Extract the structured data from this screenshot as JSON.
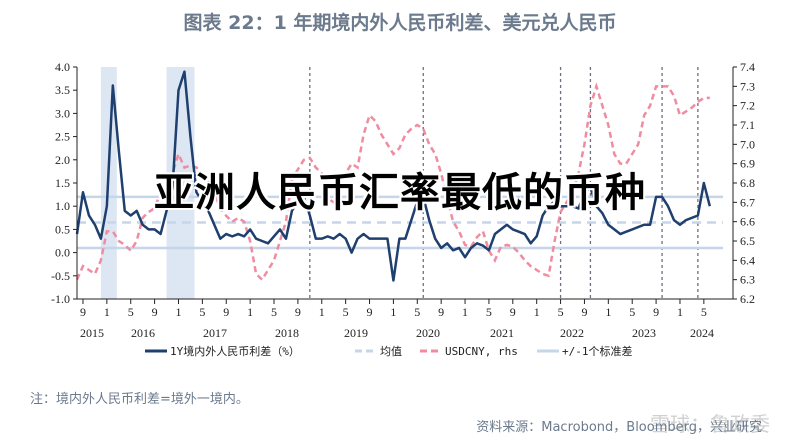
{
  "title": "图表 22：1 年期境内外人民币利差、美元兑人民币",
  "overlay_text": "亚洲人民币汇率最低的币种",
  "note": "注：境内外人民币利差=境外一境内。",
  "source": "资料来源：Macrobond，Bloomberg，兴业研究",
  "watermark": "雪球：鲁政委",
  "colors": {
    "spread": "#1f3f6e",
    "usdcny": "#f08ca0",
    "mean": "#c5d5ea",
    "std": "#c5d5ea",
    "shade": "#dde7f3",
    "vline": "#6b6f80"
  },
  "chart_data": {
    "type": "line",
    "title": "",
    "left_axis": {
      "range": [
        -1.0,
        4.0
      ],
      "ticks": [
        "-1.0",
        "-0.5",
        "0.0",
        "0.5",
        "1.0",
        "1.5",
        "2.0",
        "2.5",
        "3.0",
        "3.5",
        "4.0"
      ]
    },
    "right_axis": {
      "range": [
        6.2,
        7.4
      ],
      "ticks": [
        "6.2",
        "6.3",
        "6.4",
        "6.5",
        "6.6",
        "6.7",
        "6.8",
        "6.9",
        "7.0",
        "7.1",
        "7.2",
        "7.3",
        "7.4"
      ]
    },
    "x_month_ticks": [
      "9",
      "1",
      "5",
      "9",
      "1",
      "5",
      "9",
      "1",
      "5",
      "9",
      "1",
      "5",
      "9",
      "1",
      "5",
      "9",
      "1",
      "5",
      "9",
      "1",
      "5",
      "9",
      "1",
      "5",
      "9",
      "1",
      "5"
    ],
    "x_year_labels": [
      "2015",
      "2016",
      "2017",
      "2018",
      "2019",
      "2020",
      "2021",
      "2022",
      "2023",
      "2024"
    ],
    "x": [
      "2015-08",
      "2015-09",
      "2015-10",
      "2015-11",
      "2015-12",
      "2016-01",
      "2016-02",
      "2016-03",
      "2016-04",
      "2016-05",
      "2016-06",
      "2016-07",
      "2016-08",
      "2016-09",
      "2016-10",
      "2016-11",
      "2016-12",
      "2017-01",
      "2017-02",
      "2017-03",
      "2017-04",
      "2017-05",
      "2017-06",
      "2017-07",
      "2017-08",
      "2017-09",
      "2017-10",
      "2017-11",
      "2017-12",
      "2018-01",
      "2018-02",
      "2018-03",
      "2018-04",
      "2018-05",
      "2018-06",
      "2018-07",
      "2018-08",
      "2018-09",
      "2018-10",
      "2018-11",
      "2018-12",
      "2019-01",
      "2019-02",
      "2019-03",
      "2019-04",
      "2019-05",
      "2019-06",
      "2019-07",
      "2019-08",
      "2019-09",
      "2019-10",
      "2019-11",
      "2019-12",
      "2020-01",
      "2020-02",
      "2020-03",
      "2020-04",
      "2020-05",
      "2020-06",
      "2020-07",
      "2020-08",
      "2020-09",
      "2020-10",
      "2020-11",
      "2020-12",
      "2021-01",
      "2021-02",
      "2021-03",
      "2021-04",
      "2021-05",
      "2021-06",
      "2021-07",
      "2021-08",
      "2021-09",
      "2021-10",
      "2021-11",
      "2021-12",
      "2022-01",
      "2022-02",
      "2022-03",
      "2022-04",
      "2022-05",
      "2022-06",
      "2022-07",
      "2022-08",
      "2022-09",
      "2022-10",
      "2022-11",
      "2022-12",
      "2023-01",
      "2023-02",
      "2023-03",
      "2023-04",
      "2023-05",
      "2023-06",
      "2023-07",
      "2023-08",
      "2023-09",
      "2023-10",
      "2023-11",
      "2023-12",
      "2024-01",
      "2024-02",
      "2024-03",
      "2024-04",
      "2024-05",
      "2024-06"
    ],
    "series": [
      {
        "name": "1Y境内外人民币利差（%）",
        "axis": "left",
        "style": "solid",
        "values": [
          0.4,
          1.3,
          0.8,
          0.6,
          0.3,
          1.0,
          3.6,
          2.2,
          0.9,
          0.8,
          0.9,
          0.6,
          0.5,
          0.5,
          0.4,
          0.9,
          1.4,
          3.5,
          3.9,
          2.5,
          1.3,
          1.1,
          0.9,
          0.6,
          0.3,
          0.4,
          0.35,
          0.4,
          0.35,
          0.5,
          0.3,
          0.25,
          0.2,
          0.35,
          0.5,
          0.3,
          0.9,
          1.1,
          1.2,
          0.8,
          0.3,
          0.3,
          0.35,
          0.3,
          0.4,
          0.3,
          0.0,
          0.3,
          0.4,
          0.3,
          0.3,
          0.3,
          0.3,
          -0.6,
          0.3,
          0.3,
          0.7,
          1.1,
          1.2,
          0.7,
          0.3,
          0.1,
          0.2,
          0.05,
          0.1,
          -0.1,
          0.1,
          0.2,
          0.15,
          0.05,
          0.4,
          0.5,
          0.6,
          0.5,
          0.45,
          0.4,
          0.2,
          0.35,
          0.8,
          1.0,
          1.1,
          1.0,
          1.0,
          1.0,
          0.95,
          1.3,
          1.4,
          1.0,
          0.85,
          0.6,
          0.5,
          0.4,
          0.45,
          0.5,
          0.55,
          0.6,
          0.6,
          1.2,
          1.2,
          1.0,
          0.7,
          0.6,
          0.7,
          0.75,
          0.8,
          1.5,
          1.0
        ]
      },
      {
        "name": "USDCNY, rhs",
        "axis": "right",
        "style": "dashed",
        "values": [
          6.3,
          6.37,
          6.35,
          6.33,
          6.4,
          6.55,
          6.55,
          6.5,
          6.48,
          6.45,
          6.5,
          6.62,
          6.65,
          6.67,
          6.75,
          6.78,
          6.85,
          6.95,
          6.88,
          6.89,
          6.88,
          6.85,
          6.8,
          6.75,
          6.67,
          6.63,
          6.6,
          6.62,
          6.6,
          6.5,
          6.33,
          6.3,
          6.35,
          6.4,
          6.5,
          6.6,
          6.82,
          6.87,
          6.92,
          6.93,
          6.88,
          6.85,
          6.72,
          6.7,
          6.73,
          6.85,
          6.9,
          6.88,
          7.05,
          7.15,
          7.12,
          7.05,
          7.0,
          6.95,
          6.98,
          7.05,
          7.08,
          7.1,
          7.08,
          7.0,
          6.95,
          6.85,
          6.72,
          6.6,
          6.55,
          6.48,
          6.47,
          6.52,
          6.55,
          6.45,
          6.4,
          6.47,
          6.48,
          6.47,
          6.44,
          6.4,
          6.37,
          6.35,
          6.33,
          6.32,
          6.5,
          6.65,
          6.7,
          6.75,
          6.85,
          7.0,
          7.2,
          7.3,
          7.2,
          7.1,
          6.95,
          6.9,
          6.9,
          6.95,
          7.0,
          7.15,
          7.2,
          7.3,
          7.3,
          7.3,
          7.25,
          7.15,
          7.17,
          7.19,
          7.22,
          7.24,
          7.24
        ]
      },
      {
        "name": "均值",
        "axis": "left",
        "style": "dashed",
        "value": 0.65
      },
      {
        "name": "+/-1个标准差",
        "axis": "left",
        "style": "solid",
        "values_band": [
          0.1,
          1.2
        ]
      }
    ],
    "shaded_periods": [
      [
        "2015-12",
        "2016-02"
      ],
      [
        "2016-11",
        "2017-03"
      ]
    ],
    "vertical_markers": [
      "2018-11",
      "2020-06",
      "2022-05",
      "2022-10",
      "2023-10",
      "2024-04"
    ],
    "legend": [
      "1Y境内外人民币利差（%）",
      "均值",
      "USDCNY, rhs",
      "+/-1个标准差"
    ],
    "legend_position": "bottom",
    "grid": false
  }
}
